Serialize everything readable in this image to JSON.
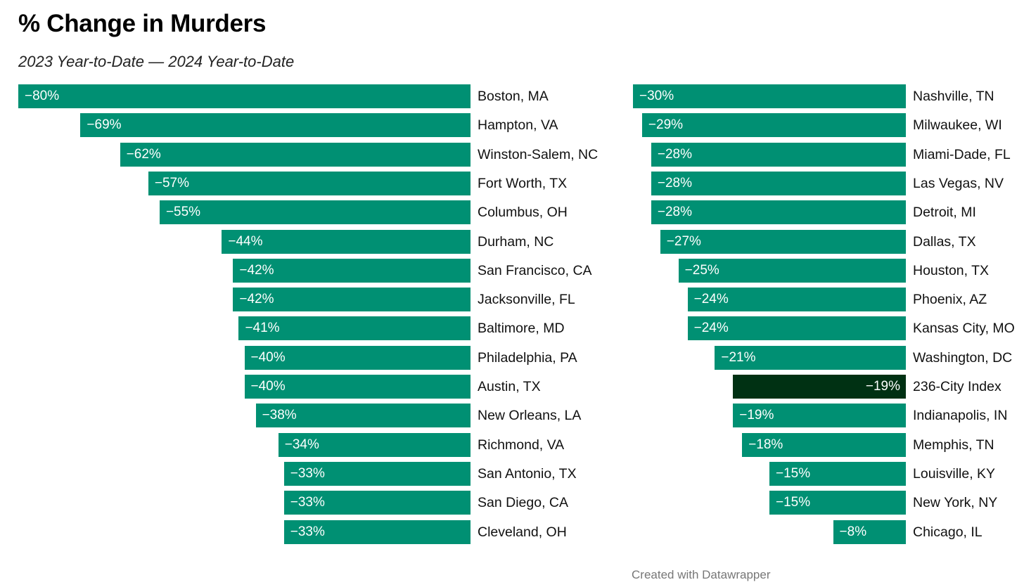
{
  "header": {
    "title": "% Change in Murders",
    "subtitle": "2023 Year-to-Date — 2024 Year-to-Date"
  },
  "footer": {
    "credit": "Created with Datawrapper"
  },
  "colors": {
    "bar": "#009073",
    "highlight": "#003113",
    "value_text": "#ffffff"
  },
  "chart_data": [
    {
      "type": "bar",
      "orientation": "horizontal",
      "categories": [
        "Boston, MA",
        "Hampton, VA",
        "Winston-Salem, NC",
        "Fort Worth, TX",
        "Columbus, OH",
        "Durham, NC",
        "San Francisco, CA",
        "Jacksonville, FL",
        "Baltimore, MD",
        "Philadelphia, PA",
        "Austin, TX",
        "New Orleans, LA",
        "Richmond, VA",
        "San Antonio, TX",
        "San Diego, CA",
        "Cleveland, OH"
      ],
      "values": [
        -80,
        -69,
        -62,
        -57,
        -55,
        -44,
        -42,
        -42,
        -41,
        -40,
        -40,
        -38,
        -34,
        -33,
        -33,
        -33
      ],
      "labels": [
        "−80%",
        "−69%",
        "−62%",
        "−57%",
        "−55%",
        "−44%",
        "−42%",
        "−42%",
        "−41%",
        "−40%",
        "−40%",
        "−38%",
        "−34%",
        "−33%",
        "−33%",
        "−33%"
      ],
      "xlim": [
        -80,
        0
      ]
    },
    {
      "type": "bar",
      "orientation": "horizontal",
      "categories": [
        "Nashville, TN",
        "Milwaukee, WI",
        "Miami-Dade, FL",
        "Las Vegas, NV",
        "Detroit, MI",
        "Dallas, TX",
        "Houston, TX",
        "Phoenix, AZ",
        "Kansas City, MO",
        "Washington, DC",
        "236-City Index",
        "Indianapolis, IN",
        "Memphis, TN",
        "Louisville, KY",
        "New York, NY",
        "Chicago, IL"
      ],
      "values": [
        -30,
        -29,
        -28,
        -28,
        -28,
        -27,
        -25,
        -24,
        -24,
        -21,
        -19,
        -19,
        -18,
        -15,
        -15,
        -8
      ],
      "labels": [
        "−30%",
        "−29%",
        "−28%",
        "−28%",
        "−28%",
        "−27%",
        "−25%",
        "−24%",
        "−24%",
        "−21%",
        "−19%",
        "−19%",
        "−18%",
        "−15%",
        "−15%",
        "−8%"
      ],
      "highlight": [
        "236-City Index"
      ],
      "xlim": [
        -30,
        0
      ]
    }
  ]
}
